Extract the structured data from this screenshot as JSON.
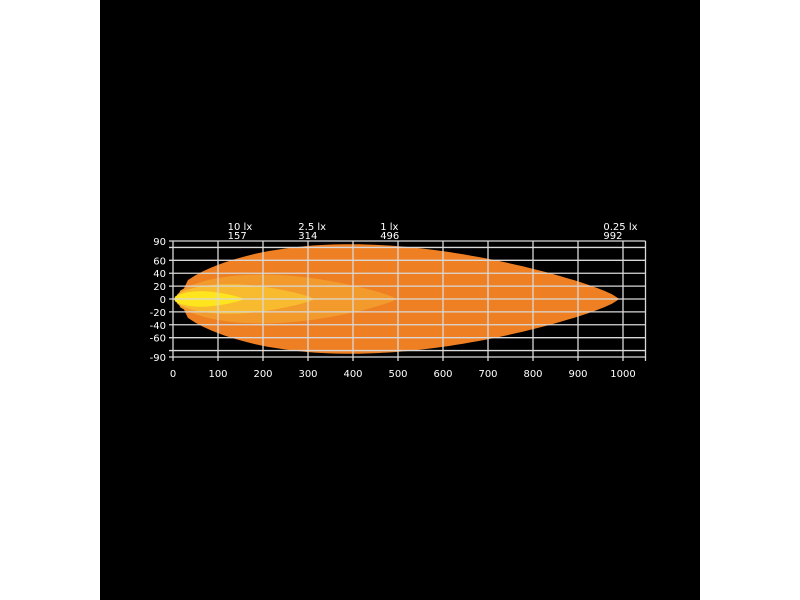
{
  "chart_data": {
    "type": "area",
    "title": "",
    "xlabel": "",
    "ylabel": "",
    "xlim": [
      0,
      1050
    ],
    "ylim": [
      -90,
      90
    ],
    "x_ticks": [
      "0",
      "100",
      "200",
      "300",
      "400",
      "500",
      "600",
      "700",
      "800",
      "900",
      "1000"
    ],
    "y_ticks": [
      "90",
      "60",
      "40",
      "20",
      "0",
      "-20",
      "-40",
      "-60",
      "-90"
    ],
    "grid": true,
    "series": [
      {
        "name": "0.25 lx",
        "distance_label": "992",
        "reach": 992,
        "half_width": 85,
        "color": "#EE7F22"
      },
      {
        "name": "1 lx",
        "distance_label": "496",
        "reach": 496,
        "half_width": 38,
        "color": "#F39A2C"
      },
      {
        "name": "2.5 lx",
        "distance_label": "314",
        "reach": 314,
        "half_width": 23,
        "color": "#F8BA2E"
      },
      {
        "name": "10 lx",
        "distance_label": "157",
        "reach": 157,
        "half_width": 12,
        "color": "#FFE51E"
      }
    ]
  }
}
